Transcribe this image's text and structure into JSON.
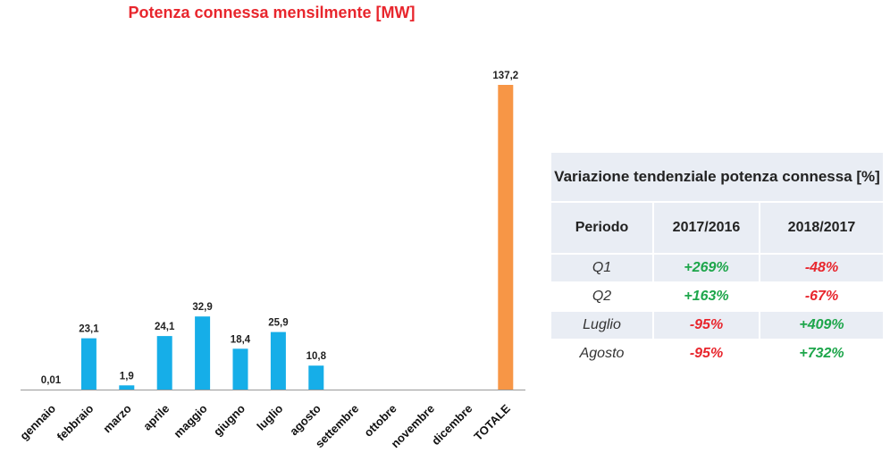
{
  "chart_data": {
    "type": "bar",
    "title": "Potenza connessa mensilmente [MW]",
    "categories": [
      "gennaio",
      "febbraio",
      "marzo",
      "aprile",
      "maggio",
      "giugno",
      "luglio",
      "agosto",
      "settembre",
      "ottobre",
      "novembre",
      "dicembre",
      "TOTALE"
    ],
    "values": [
      0.01,
      23.1,
      1.9,
      24.1,
      32.9,
      18.4,
      25.9,
      10.8,
      null,
      null,
      null,
      null,
      137.2
    ],
    "value_labels": [
      "0,01",
      "23,1",
      "1,9",
      "24,1",
      "32,9",
      "18,4",
      "25,9",
      "10,8",
      "",
      "",
      "",
      "",
      "137,2"
    ],
    "colors": {
      "month": "#16aee8",
      "total": "#f79646",
      "axis": "#999999"
    },
    "ylim": [
      0,
      137.2
    ],
    "grid": false,
    "legend": "none"
  },
  "table": {
    "title": "Variazione tendenziale potenza connessa [%]",
    "headers": [
      "Periodo",
      "2017/2016",
      "2018/2017"
    ],
    "rows": [
      [
        "Q1",
        "+269%",
        "-48%"
      ],
      [
        "Q2",
        "+163%",
        "-67%"
      ],
      [
        "Luglio",
        "-95%",
        "+409%"
      ],
      [
        "Agosto",
        "-95%",
        "+732%"
      ]
    ],
    "colors": {
      "positive": "#1ea64b",
      "negative": "#e8262d",
      "band": "#e9edf4"
    }
  }
}
